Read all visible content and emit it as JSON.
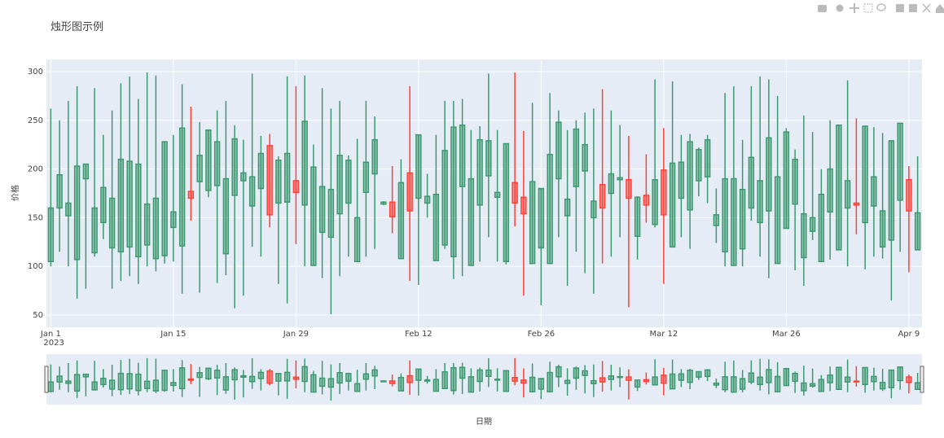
{
  "chart_data": {
    "type": "candlestick",
    "title": "烛形图示例",
    "xlabel": "日期",
    "ylabel": "价格",
    "x": [
      "2023-01-01",
      "2023-01-02",
      "2023-01-03",
      "2023-01-04",
      "2023-01-05",
      "2023-01-06",
      "2023-01-07",
      "2023-01-08",
      "2023-01-09",
      "2023-01-10",
      "2023-01-11",
      "2023-01-12",
      "2023-01-13",
      "2023-01-14",
      "2023-01-15",
      "2023-01-16",
      "2023-01-17",
      "2023-01-18",
      "2023-01-19",
      "2023-01-20",
      "2023-01-21",
      "2023-01-22",
      "2023-01-23",
      "2023-01-24",
      "2023-01-25",
      "2023-01-26",
      "2023-01-27",
      "2023-01-28",
      "2023-01-29",
      "2023-01-30",
      "2023-01-31",
      "2023-02-01",
      "2023-02-02",
      "2023-02-03",
      "2023-02-04",
      "2023-02-05",
      "2023-02-06",
      "2023-02-07",
      "2023-02-08",
      "2023-02-09",
      "2023-02-10",
      "2023-02-11",
      "2023-02-12",
      "2023-02-13",
      "2023-02-14",
      "2023-02-15",
      "2023-02-16",
      "2023-02-17",
      "2023-02-18",
      "2023-02-19",
      "2023-02-20",
      "2023-02-21",
      "2023-02-22",
      "2023-02-23",
      "2023-02-24",
      "2023-02-25",
      "2023-02-26",
      "2023-02-27",
      "2023-02-28",
      "2023-03-01",
      "2023-03-02",
      "2023-03-03",
      "2023-03-04",
      "2023-03-05",
      "2023-03-06",
      "2023-03-07",
      "2023-03-08",
      "2023-03-09",
      "2023-03-10",
      "2023-03-11",
      "2023-03-12",
      "2023-03-13",
      "2023-03-14",
      "2023-03-15",
      "2023-03-16",
      "2023-03-17",
      "2023-03-18",
      "2023-03-19",
      "2023-03-20",
      "2023-03-21",
      "2023-03-22",
      "2023-03-23",
      "2023-03-24",
      "2023-03-25",
      "2023-03-26",
      "2023-03-27",
      "2023-03-28",
      "2023-03-29",
      "2023-03-30",
      "2023-03-31",
      "2023-04-01",
      "2023-04-02",
      "2023-04-03",
      "2023-04-04",
      "2023-04-05",
      "2023-04-06",
      "2023-04-07",
      "2023-04-08",
      "2023-04-09",
      "2023-04-10"
    ],
    "open": [
      105,
      160,
      152,
      107,
      190,
      114,
      145,
      119,
      115,
      120,
      110,
      122,
      108,
      111,
      140,
      121,
      177,
      187,
      178,
      183,
      113,
      173,
      188,
      162,
      180,
      224,
      165,
      166,
      188,
      163,
      101,
      135,
      130,
      154,
      165,
      105,
      176,
      195,
      164,
      166,
      108,
      196,
      170,
      165,
      106,
      122,
      110,
      182,
      101,
      163,
      193,
      171,
      105,
      186,
      171,
      103,
      119,
      103,
      190,
      152,
      182,
      198,
      150,
      184,
      175,
      189,
      189,
      131,
      173,
      143,
      199,
      120,
      170,
      158,
      188,
      192,
      142,
      115,
      101,
      118,
      160,
      145,
      157,
      103,
      139,
      164,
      109,
      136,
      105,
      156,
      117,
      160,
      165,
      145,
      162,
      120,
      127,
      168,
      189,
      117
    ],
    "high": [
      262,
      250,
      270,
      285,
      205,
      283,
      235,
      260,
      288,
      295,
      272,
      299,
      296,
      228,
      235,
      287,
      264,
      248,
      240,
      260,
      270,
      245,
      230,
      298,
      234,
      236,
      213,
      295,
      285,
      296,
      225,
      283,
      262,
      270,
      214,
      231,
      270,
      254,
      167,
      203,
      210,
      285,
      235,
      195,
      235,
      270,
      270,
      272,
      240,
      244,
      298,
      240,
      226,
      299,
      239,
      268,
      180,
      278,
      260,
      240,
      250,
      258,
      262,
      282,
      260,
      245,
      234,
      172,
      215,
      292,
      242,
      290,
      235,
      236,
      222,
      235,
      180,
      278,
      285,
      230,
      285,
      295,
      292,
      275,
      242,
      220,
      255,
      238,
      200,
      250,
      245,
      291,
      252,
      244,
      243,
      237,
      229,
      247,
      203,
      213
    ],
    "low": [
      100,
      115,
      100,
      67,
      77,
      110,
      128,
      77,
      85,
      90,
      82,
      100,
      95,
      103,
      105,
      72,
      147,
      73,
      171,
      83,
      91,
      57,
      70,
      120,
      110,
      140,
      82,
      62,
      123,
      100,
      101,
      88,
      51,
      90,
      110,
      105,
      110,
      118,
      163,
      134,
      108,
      85,
      81,
      150,
      106,
      118,
      87,
      90,
      101,
      105,
      130,
      105,
      102,
      141,
      70,
      103,
      60,
      103,
      130,
      80,
      115,
      93,
      72,
      103,
      110,
      130,
      58,
      107,
      145,
      140,
      82,
      120,
      130,
      118,
      172,
      165,
      124,
      100,
      101,
      100,
      147,
      110,
      88,
      103,
      139,
      96,
      80,
      127,
      105,
      107,
      117,
      100,
      133,
      97,
      110,
      108,
      65,
      115,
      94,
      117
    ],
    "close": [
      160,
      194,
      165,
      203,
      205,
      160,
      181,
      170,
      210,
      208,
      205,
      164,
      170,
      228,
      156,
      242,
      170,
      214,
      240,
      228,
      190,
      231,
      196,
      192,
      216,
      153,
      209,
      216,
      176,
      249,
      202,
      182,
      179,
      214,
      209,
      150,
      207,
      230,
      166,
      151,
      186,
      157,
      235,
      172,
      174,
      219,
      243,
      245,
      190,
      230,
      229,
      176,
      226,
      165,
      154,
      187,
      180,
      215,
      248,
      169,
      241,
      225,
      167,
      160,
      195,
      191,
      170,
      171,
      163,
      189,
      153,
      206,
      207,
      228,
      220,
      230,
      153,
      190,
      190,
      179,
      212,
      188,
      232,
      192,
      238,
      210,
      154,
      150,
      174,
      200,
      245,
      188,
      163,
      244,
      192,
      157,
      229,
      247,
      157,
      155
    ],
    "increasing_color": "#3D9970",
    "decreasing_color": "#FF4136",
    "xlim": [
      "2022-12-31T12:00:00Z",
      "2023-04-10T12:00:00Z"
    ],
    "ylim": [
      37.5,
      312.5
    ],
    "yticks": [
      50,
      100,
      150,
      200,
      250,
      300
    ],
    "xticks": [
      {
        "value": "2023-01-01",
        "label": "Jan 1",
        "sublabel": "2023"
      },
      {
        "value": "2023-01-15",
        "label": "Jan 15"
      },
      {
        "value": "2023-01-29",
        "label": "Jan 29"
      },
      {
        "value": "2023-02-12",
        "label": "Feb 12"
      },
      {
        "value": "2023-02-26",
        "label": "Feb 26"
      },
      {
        "value": "2023-03-12",
        "label": "Mar 12"
      },
      {
        "value": "2023-03-26",
        "label": "Mar 26"
      },
      {
        "value": "2023-04-09",
        "label": "Apr 9"
      }
    ],
    "grid": true,
    "rangeslider": true
  }
}
